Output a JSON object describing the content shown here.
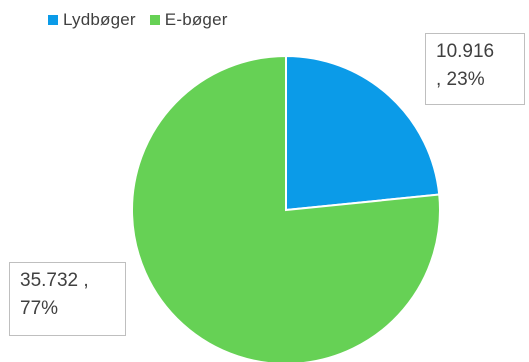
{
  "chart_data": {
    "type": "pie",
    "title": "",
    "legend_position": "top-left",
    "series": [
      {
        "name": "Lydbøger",
        "value": 10916,
        "percent": 23,
        "color": "#0b9be8",
        "label_value": "10.916",
        "label_percent": ", 23%"
      },
      {
        "name": "E-bøger",
        "value": 35732,
        "percent": 77,
        "color": "#66d155",
        "label_value": "35.732 ,",
        "label_percent": "77%"
      }
    ]
  }
}
